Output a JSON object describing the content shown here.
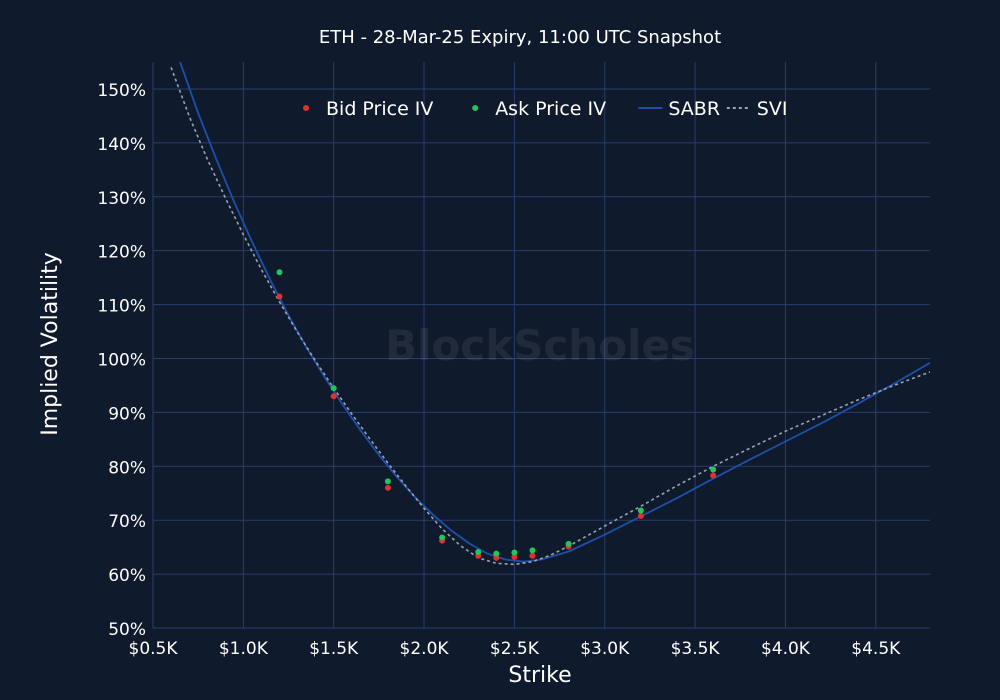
{
  "chart_data": {
    "type": "scatter",
    "title": "ETH - 28-Mar-25 Expiry, 11:00 UTC Snapshot",
    "xlabel": "Strike",
    "ylabel": "Implied Volatility",
    "watermark": "BlockScholes",
    "xlim": [
      0.5,
      4.8
    ],
    "ylim": [
      50,
      155
    ],
    "x_ticks": [
      0.5,
      1.0,
      1.5,
      2.0,
      2.5,
      3.0,
      3.5,
      4.0,
      4.5
    ],
    "x_tick_labels": [
      "$0.5K",
      "$1.0K",
      "$1.5K",
      "$2.0K",
      "$2.5K",
      "$3.0K",
      "$3.5K",
      "$4.0K",
      "$4.5K"
    ],
    "y_ticks": [
      50,
      60,
      70,
      80,
      90,
      100,
      110,
      120,
      130,
      140,
      150
    ],
    "y_tick_labels": [
      "50%",
      "60%",
      "70%",
      "80%",
      "90%",
      "100%",
      "110%",
      "120%",
      "130%",
      "140%",
      "150%"
    ],
    "grid": true,
    "legend_position": "top-center",
    "colors": {
      "background": "#0f1a2c",
      "grid": "#2a3d6b",
      "bid": "#e0322d",
      "ask": "#22c55e",
      "sabr": "#1f4fa8",
      "svi": "#9aa3b2"
    },
    "series": [
      {
        "name": "Bid Price IV",
        "kind": "markers",
        "points": [
          [
            1.2,
            111.5
          ],
          [
            1.5,
            93.0
          ],
          [
            1.8,
            76.0
          ],
          [
            2.1,
            66.2
          ],
          [
            2.3,
            63.4
          ],
          [
            2.4,
            63.0
          ],
          [
            2.5,
            63.2
          ],
          [
            2.6,
            63.4
          ],
          [
            2.8,
            65.1
          ],
          [
            3.2,
            70.8
          ],
          [
            3.6,
            78.3
          ]
        ]
      },
      {
        "name": "Ask Price IV",
        "kind": "markers",
        "points": [
          [
            1.2,
            116.0
          ],
          [
            1.5,
            94.5
          ],
          [
            1.8,
            77.2
          ],
          [
            2.1,
            66.8
          ],
          [
            2.3,
            64.1
          ],
          [
            2.4,
            63.8
          ],
          [
            2.5,
            64.0
          ],
          [
            2.6,
            64.4
          ],
          [
            2.8,
            65.6
          ],
          [
            3.2,
            71.8
          ],
          [
            3.6,
            79.4
          ]
        ]
      },
      {
        "name": "SABR",
        "kind": "line",
        "points": [
          [
            0.65,
            155.0
          ],
          [
            0.75,
            145.5
          ],
          [
            0.85,
            137.0
          ],
          [
            0.95,
            129.0
          ],
          [
            1.05,
            121.5
          ],
          [
            1.15,
            114.5
          ],
          [
            1.25,
            108.0
          ],
          [
            1.35,
            102.0
          ],
          [
            1.45,
            96.5
          ],
          [
            1.55,
            91.4
          ],
          [
            1.65,
            86.6
          ],
          [
            1.75,
            82.1
          ],
          [
            1.85,
            78.0
          ],
          [
            1.95,
            74.3
          ],
          [
            2.05,
            71.0
          ],
          [
            2.15,
            68.1
          ],
          [
            2.25,
            65.7
          ],
          [
            2.35,
            63.8
          ],
          [
            2.45,
            62.7
          ],
          [
            2.55,
            62.3
          ],
          [
            2.65,
            62.7
          ],
          [
            2.8,
            64.2
          ],
          [
            3.0,
            67.3
          ],
          [
            3.2,
            70.7
          ],
          [
            3.4,
            74.1
          ],
          [
            3.6,
            77.7
          ],
          [
            3.8,
            81.2
          ],
          [
            4.0,
            84.6
          ],
          [
            4.2,
            88.0
          ],
          [
            4.4,
            91.6
          ],
          [
            4.6,
            95.3
          ],
          [
            4.8,
            99.2
          ]
        ]
      },
      {
        "name": "SVI",
        "kind": "line",
        "dashed": true,
        "points": [
          [
            0.6,
            154.0
          ],
          [
            0.7,
            145.0
          ],
          [
            0.8,
            137.0
          ],
          [
            0.9,
            129.8
          ],
          [
            1.0,
            123.0
          ],
          [
            1.1,
            116.5
          ],
          [
            1.2,
            110.5
          ],
          [
            1.3,
            104.8
          ],
          [
            1.4,
            99.5
          ],
          [
            1.5,
            94.5
          ],
          [
            1.6,
            89.7
          ],
          [
            1.7,
            85.1
          ],
          [
            1.8,
            80.6
          ],
          [
            1.9,
            76.3
          ],
          [
            2.0,
            72.2
          ],
          [
            2.1,
            68.4
          ],
          [
            2.2,
            65.3
          ],
          [
            2.3,
            63.0
          ],
          [
            2.4,
            62.0
          ],
          [
            2.5,
            61.8
          ],
          [
            2.6,
            62.3
          ],
          [
            2.7,
            63.5
          ],
          [
            2.8,
            65.2
          ],
          [
            3.0,
            68.9
          ],
          [
            3.2,
            72.6
          ],
          [
            3.4,
            76.4
          ],
          [
            3.6,
            80.0
          ],
          [
            3.8,
            83.3
          ],
          [
            4.0,
            86.5
          ],
          [
            4.2,
            89.4
          ],
          [
            4.4,
            92.3
          ],
          [
            4.6,
            95.0
          ],
          [
            4.8,
            97.5
          ]
        ]
      }
    ]
  }
}
